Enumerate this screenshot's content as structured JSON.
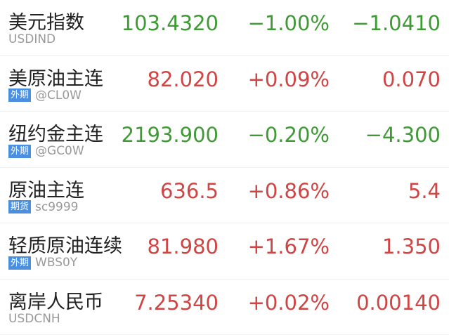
{
  "colors": {
    "up": "#d04444",
    "down": "#3f9a36",
    "badge": "#4a8fe0"
  },
  "rows": [
    {
      "name": "美元指数",
      "code": "USDIND",
      "badge": "",
      "price": "103.4320",
      "pct": "−1.00%",
      "chg": "−1.0410",
      "dir": "down"
    },
    {
      "name": "美原油主连",
      "code": "@CL0W",
      "badge": "外期",
      "price": "82.020",
      "pct": "+0.09%",
      "chg": "0.070",
      "dir": "up"
    },
    {
      "name": "纽约金主连",
      "code": "@GC0W",
      "badge": "外期",
      "price": "2193.900",
      "pct": "−0.20%",
      "chg": "−4.300",
      "dir": "down"
    },
    {
      "name": "原油主连",
      "code": "sc9999",
      "badge": "期货",
      "price": "636.5",
      "pct": "+0.86%",
      "chg": "5.4",
      "dir": "up"
    },
    {
      "name": "轻质原油连续",
      "code": "WBS0Y",
      "badge": "外期",
      "price": "81.980",
      "pct": "+1.67%",
      "chg": "1.350",
      "dir": "up"
    },
    {
      "name": "离岸人民币",
      "code": "USDCNH",
      "badge": "",
      "price": "7.25340",
      "pct": "+0.02%",
      "chg": "0.00140",
      "dir": "up"
    }
  ]
}
